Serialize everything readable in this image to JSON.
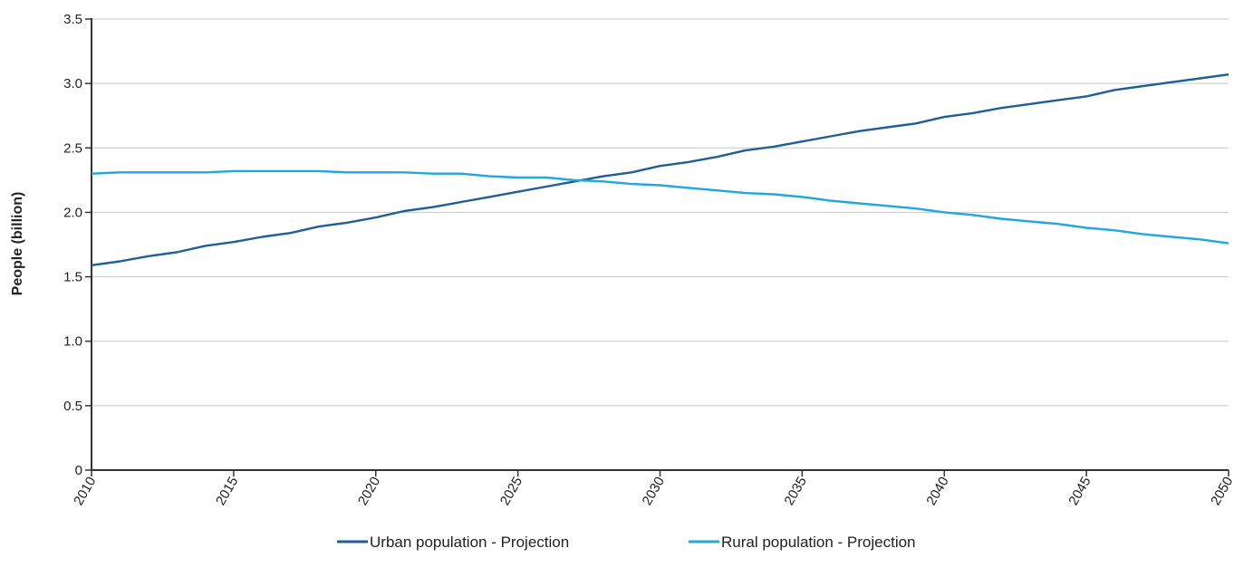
{
  "chart_data": {
    "type": "line",
    "title": "",
    "xlabel": "",
    "ylabel": "People (billion)",
    "xlim": [
      2010,
      2050
    ],
    "ylim": [
      0,
      3.5
    ],
    "x_ticks": [
      2010,
      2015,
      2020,
      2025,
      2030,
      2035,
      2040,
      2045,
      2050
    ],
    "y_ticks": [
      0,
      0.5,
      1.0,
      1.5,
      2.0,
      2.5,
      3.0,
      3.5
    ],
    "y_tick_labels": [
      "0",
      "0.5",
      "1.0",
      "1.5",
      "2.0",
      "2.5",
      "3.0",
      "3.5"
    ],
    "grid": "horizontal",
    "legend_position": "bottom",
    "x": [
      2010,
      2011,
      2012,
      2013,
      2014,
      2015,
      2016,
      2017,
      2018,
      2019,
      2020,
      2021,
      2022,
      2023,
      2024,
      2025,
      2026,
      2027,
      2028,
      2029,
      2030,
      2031,
      2032,
      2033,
      2034,
      2035,
      2036,
      2037,
      2038,
      2039,
      2040,
      2041,
      2042,
      2043,
      2044,
      2045,
      2046,
      2047,
      2048,
      2049,
      2050
    ],
    "series": [
      {
        "name": "Urban population - Projection",
        "color": "#1f5f99",
        "values": [
          1.59,
          1.62,
          1.66,
          1.69,
          1.74,
          1.77,
          1.81,
          1.84,
          1.89,
          1.92,
          1.96,
          2.01,
          2.04,
          2.08,
          2.12,
          2.16,
          2.2,
          2.24,
          2.28,
          2.31,
          2.36,
          2.39,
          2.43,
          2.48,
          2.51,
          2.55,
          2.59,
          2.63,
          2.66,
          2.69,
          2.74,
          2.77,
          2.81,
          2.84,
          2.87,
          2.9,
          2.95,
          2.98,
          3.01,
          3.04,
          3.07
        ]
      },
      {
        "name": "Rural population - Projection",
        "color": "#1ea7e1",
        "values": [
          2.3,
          2.31,
          2.31,
          2.31,
          2.31,
          2.32,
          2.32,
          2.32,
          2.32,
          2.31,
          2.31,
          2.31,
          2.3,
          2.3,
          2.28,
          2.27,
          2.27,
          2.25,
          2.24,
          2.22,
          2.21,
          2.19,
          2.17,
          2.15,
          2.14,
          2.12,
          2.09,
          2.07,
          2.05,
          2.03,
          2.0,
          1.98,
          1.95,
          1.93,
          1.91,
          1.88,
          1.86,
          1.83,
          1.81,
          1.79,
          1.76
        ]
      }
    ]
  }
}
